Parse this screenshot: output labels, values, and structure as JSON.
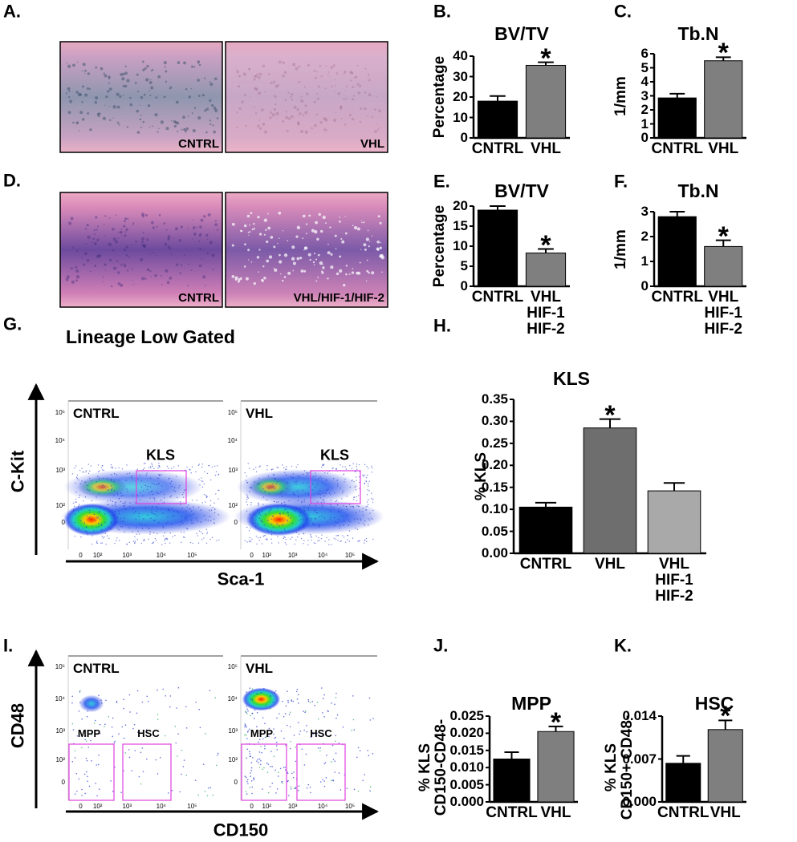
{
  "panels": [
    {
      "label": "A.",
      "captions": [
        "CNTRL",
        "VHL"
      ]
    },
    {
      "label": "D.",
      "captions": [
        "CNTRL",
        "VHL/HIF-1/HIF-2"
      ]
    },
    {
      "label": "G.",
      "title": "Lineage Low Gated",
      "y_axis": "C-Kit",
      "x_axis": "Sca-1",
      "plots": [
        {
          "name": "CNTRL",
          "gates": [
            "KLS"
          ]
        },
        {
          "name": "VHL",
          "gates": [
            "KLS"
          ]
        }
      ],
      "yticks": [
        "10⁵",
        "10⁴",
        "10³",
        "10²",
        "0"
      ],
      "xticks": [
        "0",
        "10²",
        "10³",
        "10⁴",
        "10⁵"
      ]
    },
    {
      "label": "I.",
      "y_axis": "CD48",
      "x_axis": "CD150",
      "plots": [
        {
          "name": "CNTRL",
          "gates": [
            "MPP",
            "HSC"
          ]
        },
        {
          "name": "VHL",
          "gates": [
            "MPP",
            "HSC"
          ]
        }
      ],
      "yticks": [
        "10⁵",
        "10⁴",
        "10³",
        "10²",
        "0"
      ],
      "xticks": [
        "0",
        "10²",
        "10³",
        "10⁴",
        "10⁵"
      ]
    }
  ],
  "chart_data": [
    {
      "type": "bar",
      "label": "B.",
      "title": "BV/TV",
      "ylabel": "Percentage",
      "categories": [
        "CNTRL",
        "VHL"
      ],
      "values": [
        18,
        35.5
      ],
      "errors": [
        2.5,
        1.5
      ],
      "colors": [
        "#000000",
        "#7f7f7f"
      ],
      "markers": [
        null,
        "*"
      ],
      "ylim": [
        0,
        40
      ],
      "yticks": [
        0,
        10,
        20,
        30,
        40
      ]
    },
    {
      "type": "bar",
      "label": "C.",
      "title": "Tb.N",
      "ylabel": "1/mm",
      "categories": [
        "CNTRL",
        "VHL"
      ],
      "values": [
        2.85,
        5.5
      ],
      "errors": [
        0.3,
        0.25
      ],
      "colors": [
        "#000000",
        "#7f7f7f"
      ],
      "markers": [
        null,
        "*"
      ],
      "ylim": [
        0,
        6
      ],
      "yticks": [
        0,
        1,
        2,
        3,
        4,
        5,
        6
      ]
    },
    {
      "type": "bar",
      "label": "E.",
      "title": "BV/TV",
      "ylabel": "Percentage",
      "categories": [
        "CNTRL",
        "VHL\nHIF-1\nHIF-2"
      ],
      "values": [
        19,
        8.3
      ],
      "errors": [
        1,
        1
      ],
      "colors": [
        "#000000",
        "#7f7f7f"
      ],
      "markers": [
        null,
        "*"
      ],
      "ylim": [
        0,
        20
      ],
      "yticks": [
        0,
        5,
        10,
        15,
        20
      ]
    },
    {
      "type": "bar",
      "label": "F.",
      "title": "Tb.N",
      "ylabel": "1/mm",
      "categories": [
        "CNTRL",
        "VHL\nHIF-1\nHIF-2"
      ],
      "values": [
        2.8,
        1.6
      ],
      "errors": [
        0.2,
        0.25
      ],
      "colors": [
        "#000000",
        "#7f7f7f"
      ],
      "markers": [
        null,
        "*"
      ],
      "ylim": [
        0,
        3
      ],
      "yticks": [
        0,
        1,
        2,
        3
      ]
    },
    {
      "type": "bar",
      "label": "H.",
      "title": "KLS",
      "ylabel": "% KLS",
      "categories": [
        "CNTRL",
        "VHL",
        "VHL\nHIF-1\nHIF-2"
      ],
      "values": [
        0.105,
        0.285,
        0.142
      ],
      "errors": [
        0.01,
        0.02,
        0.018
      ],
      "colors": [
        "#000000",
        "#6e6e6e",
        "#a9a9a9"
      ],
      "markers": [
        null,
        "*",
        null
      ],
      "ylim": [
        0,
        0.35
      ],
      "yticks": [
        {
          "value": 0,
          "label": "0.00"
        },
        {
          "value": 0.05,
          "label": "0.05"
        },
        {
          "value": 0.1,
          "label": "0.10"
        },
        {
          "value": 0.15,
          "label": "0.15"
        },
        {
          "value": 0.2,
          "label": "0.20"
        },
        {
          "value": 0.25,
          "label": "0.25"
        },
        {
          "value": 0.3,
          "label": "0.30"
        },
        {
          "value": 0.35,
          "label": "0.35"
        }
      ]
    },
    {
      "type": "bar",
      "label": "J.",
      "title": "MPP",
      "ylabel": "% KLS\nCD150-CD48-",
      "categories": [
        "CNTRL",
        "VHL"
      ],
      "values": [
        0.0125,
        0.0205
      ],
      "errors": [
        0.002,
        0.0015
      ],
      "colors": [
        "#000000",
        "#7f7f7f"
      ],
      "markers": [
        null,
        "*"
      ],
      "ylim": [
        0,
        0.025
      ],
      "yticks": [
        {
          "value": 0,
          "label": "0.000"
        },
        {
          "value": 0.005,
          "label": "0.005"
        },
        {
          "value": 0.01,
          "label": "0.010"
        },
        {
          "value": 0.015,
          "label": "0.015"
        },
        {
          "value": 0.02,
          "label": "0.020"
        },
        {
          "value": 0.025,
          "label": "0.025"
        }
      ]
    },
    {
      "type": "bar",
      "label": "K.",
      "title": "HSC",
      "ylabel": "% KLS\nCD150+ CD48-",
      "categories": [
        "CNTRL",
        "VHL"
      ],
      "values": [
        0.0063,
        0.0118
      ],
      "errors": [
        0.0012,
        0.0015
      ],
      "colors": [
        "#000000",
        "#7f7f7f"
      ],
      "markers": [
        null,
        "*"
      ],
      "ylim": [
        0,
        0.014
      ],
      "yticks": [
        {
          "value": 0,
          "label": "0.000"
        },
        {
          "value": 0.007,
          "label": "0.007"
        },
        {
          "value": 0.014,
          "label": "0.014"
        }
      ]
    }
  ]
}
